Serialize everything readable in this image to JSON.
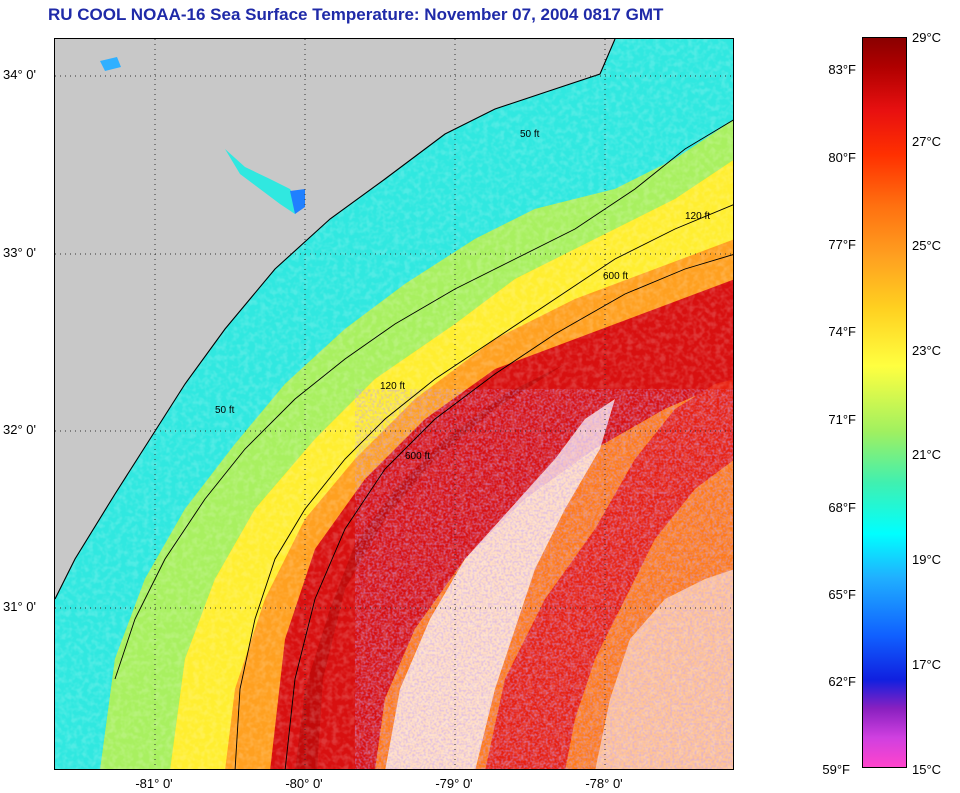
{
  "title": "RU COOL  NOAA-16  Sea Surface Temperature:  November 07, 2004 0817 GMT",
  "map": {
    "land_color": "#c8c8c8",
    "lat_labels": [
      "34° 0'",
      "33° 0'",
      "32° 0'",
      "31° 0'"
    ],
    "lon_labels": [
      "-81° 0'",
      "-80° 0'",
      "-79° 0'",
      "-78° 0'"
    ],
    "contours": [
      {
        "label": "50 ft"
      },
      {
        "label": "120 ft"
      },
      {
        "label": "600 ft"
      }
    ]
  },
  "colorbar": {
    "fahrenheit": [
      "83°F",
      "80°F",
      "77°F",
      "74°F",
      "71°F",
      "68°F",
      "65°F",
      "62°F",
      "59°F"
    ],
    "celsius": [
      "29°C",
      "27°C",
      "25°C",
      "23°C",
      "21°C",
      "19°C",
      "17°C",
      "15°C"
    ]
  }
}
